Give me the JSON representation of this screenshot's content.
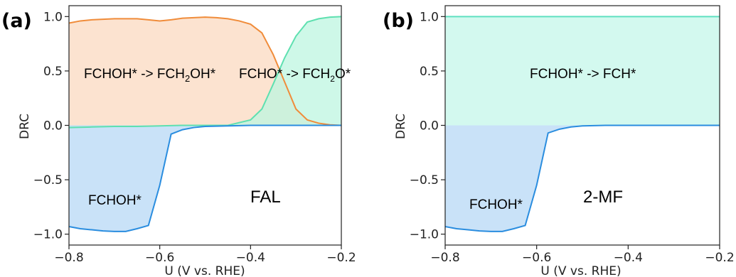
{
  "chart_data": [
    {
      "type": "area",
      "panel_label": "(a)",
      "xlabel": "U (V vs. RHE)",
      "ylabel": "DRC",
      "xlim": [
        -0.8,
        -0.2
      ],
      "ylim": [
        -1.1,
        1.1
      ],
      "xticks": [
        -0.8,
        -0.6,
        -0.4,
        -0.2
      ],
      "xtick_labels": [
        "−0.8",
        "−0.6",
        "−0.4",
        "−0.2"
      ],
      "yticks": [
        1.0,
        0.5,
        0.0,
        -0.5,
        -1.0
      ],
      "ytick_labels": [
        "1.0",
        "0.5",
        "0.0",
        "−0.5",
        "−1.0"
      ],
      "grid": false,
      "series": [
        {
          "name": "FCHOH* -> FCH2OH*",
          "line_color": "#f08c3a",
          "fill_color": "#fbd9c0",
          "x": [
            -0.8,
            -0.775,
            -0.75,
            -0.725,
            -0.7,
            -0.675,
            -0.65,
            -0.625,
            -0.6,
            -0.575,
            -0.55,
            -0.525,
            -0.5,
            -0.475,
            -0.45,
            -0.425,
            -0.4,
            -0.375,
            -0.35,
            -0.325,
            -0.3,
            -0.275,
            -0.25,
            -0.225,
            -0.2
          ],
          "y": [
            0.94,
            0.96,
            0.97,
            0.975,
            0.98,
            0.98,
            0.98,
            0.97,
            0.96,
            0.97,
            0.985,
            0.99,
            0.995,
            0.99,
            0.98,
            0.96,
            0.93,
            0.85,
            0.65,
            0.4,
            0.15,
            0.05,
            0.02,
            0.005,
            0.0
          ]
        },
        {
          "name": "FCHO* -> FCH2O*",
          "line_color": "#5ee0b0",
          "fill_color": "#bdf5e0",
          "x": [
            -0.8,
            -0.75,
            -0.7,
            -0.65,
            -0.6,
            -0.55,
            -0.5,
            -0.45,
            -0.4,
            -0.375,
            -0.35,
            -0.325,
            -0.3,
            -0.275,
            -0.25,
            -0.225,
            -0.2
          ],
          "y": [
            -0.02,
            -0.015,
            -0.01,
            -0.01,
            -0.005,
            0.0,
            0.0,
            0.0,
            0.05,
            0.15,
            0.38,
            0.62,
            0.82,
            0.95,
            0.98,
            0.995,
            1.0
          ]
        },
        {
          "name": "FCHOH*",
          "line_color": "#2a8ddf",
          "fill_color": "#b7d8f5",
          "x": [
            -0.8,
            -0.775,
            -0.75,
            -0.725,
            -0.7,
            -0.675,
            -0.65,
            -0.625,
            -0.6,
            -0.575,
            -0.55,
            -0.525,
            -0.5,
            -0.45,
            -0.4,
            -0.35,
            -0.3,
            -0.2
          ],
          "y": [
            -0.93,
            -0.95,
            -0.96,
            -0.97,
            -0.975,
            -0.975,
            -0.95,
            -0.92,
            -0.55,
            -0.08,
            -0.04,
            -0.02,
            -0.01,
            -0.005,
            0.0,
            0.0,
            0.0,
            0.0
          ]
        }
      ],
      "annotations": [
        {
          "text": "FCHOH* -> FCH",
          "sub": "2",
          "tail": "OH*",
          "color": "#c8703a"
        },
        {
          "text": "FCHO* -> FCH",
          "sub": "2",
          "tail": "O*",
          "color": "#3fc79a"
        },
        {
          "text": "FCHOH*",
          "color": "#2a6fb5"
        },
        {
          "text": "FAL",
          "color": "#f08c3a"
        }
      ]
    },
    {
      "type": "area",
      "panel_label": "(b)",
      "xlabel": "U (V vs. RHE)",
      "ylabel": "DRC",
      "xlim": [
        -0.8,
        -0.2
      ],
      "ylim": [
        -1.1,
        1.1
      ],
      "xticks": [
        -0.8,
        -0.6,
        -0.4,
        -0.2
      ],
      "xtick_labels": [
        "−0.8",
        "−0.6",
        "−0.4",
        "−0.2"
      ],
      "yticks": [
        1.0,
        0.5,
        0.0,
        -0.5,
        -1.0
      ],
      "ytick_labels": [
        "1.0",
        "0.5",
        "0.0",
        "−0.5",
        "−1.0"
      ],
      "grid": false,
      "series": [
        {
          "name": "FCHOH* -> FCH*",
          "line_color": "#5ee0c0",
          "fill_color": "#c4f7ea",
          "x": [
            -0.8,
            -0.2
          ],
          "y": [
            1.0,
            1.0
          ]
        },
        {
          "name": "FCHOH*",
          "line_color": "#2a8ddf",
          "fill_color": "#b7d8f5",
          "x": [
            -0.8,
            -0.775,
            -0.75,
            -0.725,
            -0.7,
            -0.675,
            -0.65,
            -0.625,
            -0.6,
            -0.575,
            -0.55,
            -0.525,
            -0.5,
            -0.45,
            -0.4,
            -0.35,
            -0.3,
            -0.2
          ],
          "y": [
            -0.93,
            -0.95,
            -0.96,
            -0.97,
            -0.975,
            -0.975,
            -0.95,
            -0.92,
            -0.55,
            -0.07,
            -0.035,
            -0.015,
            -0.005,
            0.0,
            0.0,
            0.0,
            0.0,
            0.0
          ]
        }
      ],
      "annotations": [
        {
          "text": "FCHOH* -> FCH*",
          "color": "#3fb59a"
        },
        {
          "text": "FCHOH*",
          "color": "#2a6fb5"
        },
        {
          "text": "2-MF",
          "color": "#22b573"
        }
      ]
    }
  ]
}
